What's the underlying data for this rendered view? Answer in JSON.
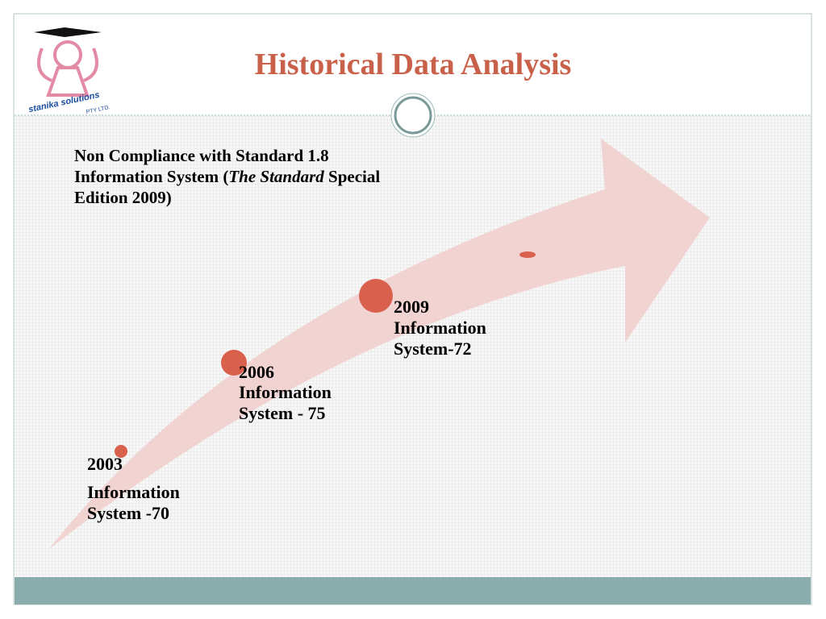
{
  "header": {
    "title": "Historical Data Analysis",
    "logo": {
      "name": "stanika solutions",
      "suffix": "PTY LTD."
    }
  },
  "note": {
    "before": "Non Compliance with Standard 1.8 Information System  (",
    "italic": "The Standard",
    "after": " Special Edition 2009)"
  },
  "milestones": [
    {
      "year": "2003",
      "label": "Information System -70"
    },
    {
      "year": "2006",
      "label": "Information System - 75"
    },
    {
      "year": "2009",
      "label": "Information System-72"
    }
  ]
}
